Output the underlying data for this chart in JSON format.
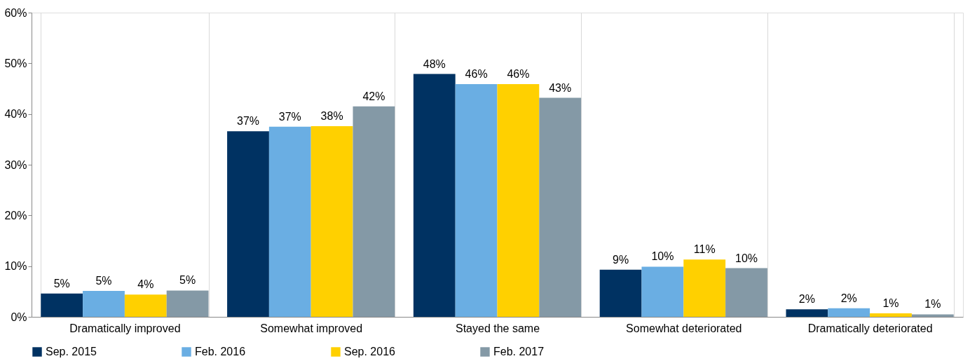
{
  "chart_data": {
    "type": "bar",
    "categories": [
      "Dramatically improved",
      "Somewhat improved",
      "Stayed the same",
      "Somewhat deteriorated",
      "Dramatically deteriorated"
    ],
    "series": [
      {
        "name": "Sep. 2015",
        "color": "#003262",
        "values": [
          4.6,
          36.6,
          47.9,
          9.3,
          1.5
        ],
        "value_labels": [
          "5%",
          "37%",
          "48%",
          "9%",
          "2%"
        ]
      },
      {
        "name": "Feb. 2016",
        "color": "#6aaee3",
        "values": [
          5.1,
          37.5,
          45.9,
          9.9,
          1.7
        ],
        "value_labels": [
          "5%",
          "37%",
          "46%",
          "10%",
          "2%"
        ]
      },
      {
        "name": "Sep. 2016",
        "color": "#ffd000",
        "values": [
          4.4,
          37.6,
          45.9,
          11.3,
          0.7
        ],
        "value_labels": [
          "4%",
          "38%",
          "46%",
          "11%",
          "1%"
        ]
      },
      {
        "name": "Feb. 2017",
        "color": "#8499a6",
        "values": [
          5.2,
          41.5,
          43.2,
          9.6,
          0.5
        ],
        "value_labels": [
          "5%",
          "42%",
          "43%",
          "10%",
          "1%"
        ]
      }
    ],
    "ylim": [
      0,
      60
    ],
    "yticks": [
      {
        "value": 0,
        "label": "0%"
      },
      {
        "value": 10,
        "label": "10%"
      },
      {
        "value": 20,
        "label": "20%"
      },
      {
        "value": 30,
        "label": "30%"
      },
      {
        "value": 40,
        "label": "40%"
      },
      {
        "value": 50,
        "label": "50%"
      },
      {
        "value": 60,
        "label": "60%"
      }
    ],
    "grid": "x",
    "legend": "bottom"
  }
}
